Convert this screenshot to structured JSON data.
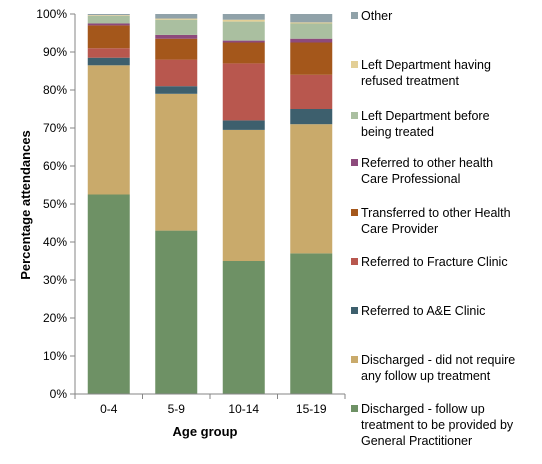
{
  "chart_data": {
    "type": "bar",
    "stacked": true,
    "categories": [
      "0-4",
      "5-9",
      "10-14",
      "15-19"
    ],
    "xlabel": "Age group",
    "ylabel": "Percentage attendances",
    "ylim": [
      0,
      100
    ],
    "y_ticks": [
      "0%",
      "10%",
      "20%",
      "30%",
      "40%",
      "50%",
      "60%",
      "70%",
      "80%",
      "90%",
      "100%"
    ],
    "grid": false,
    "legend_position": "right",
    "series": [
      {
        "name": "Discharged - follow up treatment to be provided by General Practitioner",
        "legend_lines": [
          "Discharged - follow up",
          "treatment to be provided by",
          "General Practitioner"
        ],
        "color": "#6e9165",
        "values": [
          52.5,
          43,
          35,
          37
        ]
      },
      {
        "name": "Discharged - did not require any follow up treatment",
        "legend_lines": [
          "Discharged - did not require",
          "any follow up treatment"
        ],
        "color": "#c9aa6b",
        "values": [
          34,
          36,
          34.5,
          34
        ]
      },
      {
        "name": "Referred to A&E Clinic",
        "legend_lines": [
          "Referred to A&E Clinic"
        ],
        "color": "#3d5f6d",
        "values": [
          2,
          2,
          2.5,
          4
        ]
      },
      {
        "name": "Referred to Fracture Clinic",
        "legend_lines": [
          "Referred to Fracture Clinic"
        ],
        "color": "#b8574e",
        "values": [
          2.5,
          7,
          15,
          9
        ]
      },
      {
        "name": "Transferred to other Health Care Provider",
        "legend_lines": [
          "Transferred to other Health",
          "Care Provider"
        ],
        "color": "#a4571b",
        "values": [
          6,
          5.5,
          5.5,
          8.5
        ]
      },
      {
        "name": "Referred to other health Care Professional",
        "legend_lines": [
          "Referred to other health",
          "Care Professional"
        ],
        "color": "#8d4a7c",
        "values": [
          0.5,
          1,
          0.5,
          1
        ]
      },
      {
        "name": "Left Department before being treated",
        "legend_lines": [
          "Left Department before",
          "being treated"
        ],
        "color": "#aabfa0",
        "values": [
          2,
          4,
          5,
          4
        ]
      },
      {
        "name": "Left Department having refused treatment",
        "legend_lines": [
          "Left Department having",
          "refused treatment"
        ],
        "color": "#e3cf96",
        "values": [
          0.2,
          0.3,
          0.5,
          0.3
        ]
      },
      {
        "name": "Other",
        "legend_lines": [
          "Other"
        ],
        "color": "#90a2a9",
        "values": [
          0.3,
          1.2,
          1.5,
          2.2
        ]
      }
    ]
  }
}
